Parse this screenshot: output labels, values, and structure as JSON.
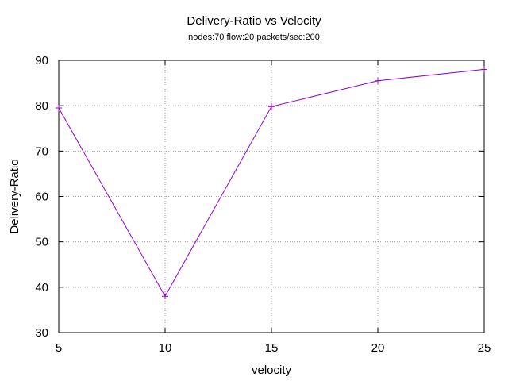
{
  "chart_data": {
    "type": "line",
    "title": "Delivery-Ratio vs Velocity",
    "subtitle": "nodes:70  flow:20  packets/sec:200",
    "xlabel": "velocity",
    "ylabel": "Delivery-Ratio",
    "xlim": [
      5,
      25
    ],
    "ylim": [
      30,
      90
    ],
    "xticks": [
      5,
      10,
      15,
      20,
      25
    ],
    "yticks": [
      30,
      40,
      50,
      60,
      70,
      80,
      90
    ],
    "grid": true,
    "series": [
      {
        "color": "#9400d3",
        "marker": "plus",
        "x": [
          5,
          10,
          15,
          20,
          25
        ],
        "y": [
          79.5,
          38.0,
          79.8,
          85.5,
          88.0
        ]
      }
    ]
  }
}
